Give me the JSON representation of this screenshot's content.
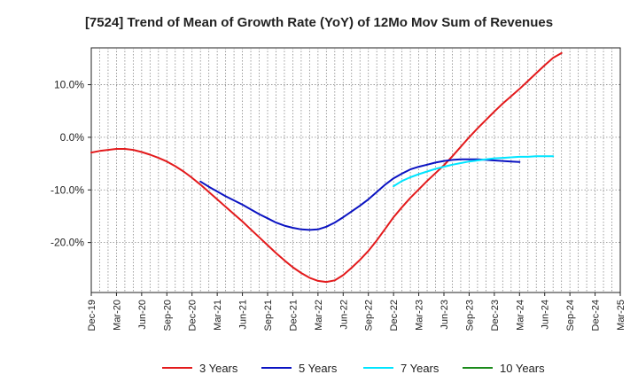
{
  "chart_data": {
    "type": "line",
    "title": "[7524]  Trend of Mean of Growth Rate (YoY) of 12Mo Mov Sum of Revenues",
    "xlabel": "",
    "ylabel": "",
    "ylim": [
      -29.5,
      17.0
    ],
    "y_ticks": [
      10,
      0,
      -10,
      -20
    ],
    "y_tick_labels": [
      "10.0%",
      "0.0%",
      "-10.0%",
      "-20.0%"
    ],
    "grid": true,
    "legend_position": "bottom",
    "x_tick_labels": [
      "Dec-19",
      "Mar-20",
      "Jun-20",
      "Sep-20",
      "Dec-20",
      "Mar-21",
      "Jun-21",
      "Sep-21",
      "Dec-21",
      "Mar-22",
      "Jun-22",
      "Sep-22",
      "Dec-22",
      "Mar-23",
      "Jun-23",
      "Sep-23",
      "Dec-23",
      "Mar-24",
      "Jun-24",
      "Sep-24",
      "Dec-24",
      "Mar-25"
    ],
    "x_start_index": 0,
    "series": [
      {
        "name": "3 Years",
        "color": "#e31a1c",
        "start_month_index": 0,
        "values": [
          -2.9,
          -2.6,
          -2.4,
          -2.2,
          -2.2,
          -2.4,
          -2.8,
          -3.3,
          -3.9,
          -4.6,
          -5.5,
          -6.5,
          -7.7,
          -9.0,
          -10.4,
          -11.8,
          -13.2,
          -14.6,
          -16.0,
          -17.5,
          -19.0,
          -20.5,
          -22.0,
          -23.4,
          -24.7,
          -25.8,
          -26.7,
          -27.3,
          -27.5,
          -27.2,
          -26.2,
          -24.8,
          -23.3,
          -21.6,
          -19.6,
          -17.4,
          -15.2,
          -13.3,
          -11.5,
          -9.9,
          -8.3,
          -6.8,
          -5.3,
          -3.6,
          -1.8,
          0.0,
          1.7,
          3.3,
          4.9,
          6.4,
          7.8,
          9.2,
          10.7,
          12.2,
          13.7,
          15.1,
          16.0
        ]
      },
      {
        "name": "5 Years",
        "color": "#0b13c2",
        "start_month_index": 13,
        "values": [
          -8.4,
          -9.4,
          -10.3,
          -11.2,
          -12.0,
          -12.8,
          -13.7,
          -14.6,
          -15.4,
          -16.2,
          -16.8,
          -17.2,
          -17.5,
          -17.6,
          -17.5,
          -17.0,
          -16.2,
          -15.2,
          -14.1,
          -13.0,
          -11.8,
          -10.4,
          -9.0,
          -7.8,
          -6.9,
          -6.1,
          -5.6,
          -5.2,
          -4.8,
          -4.5,
          -4.3,
          -4.2,
          -4.2,
          -4.2,
          -4.3,
          -4.4,
          -4.5,
          -4.6,
          -4.7
        ]
      },
      {
        "name": "7 Years",
        "color": "#00e5ff",
        "start_month_index": 36,
        "values": [
          -9.3,
          -8.3,
          -7.6,
          -7.0,
          -6.5,
          -6.0,
          -5.6,
          -5.2,
          -4.9,
          -4.6,
          -4.4,
          -4.2,
          -4.0,
          -3.9,
          -3.8,
          -3.7,
          -3.7,
          -3.6,
          -3.6,
          -3.6
        ]
      },
      {
        "name": "10 Years",
        "color": "#1a8a1a",
        "start_month_index": 0,
        "values": []
      }
    ]
  }
}
